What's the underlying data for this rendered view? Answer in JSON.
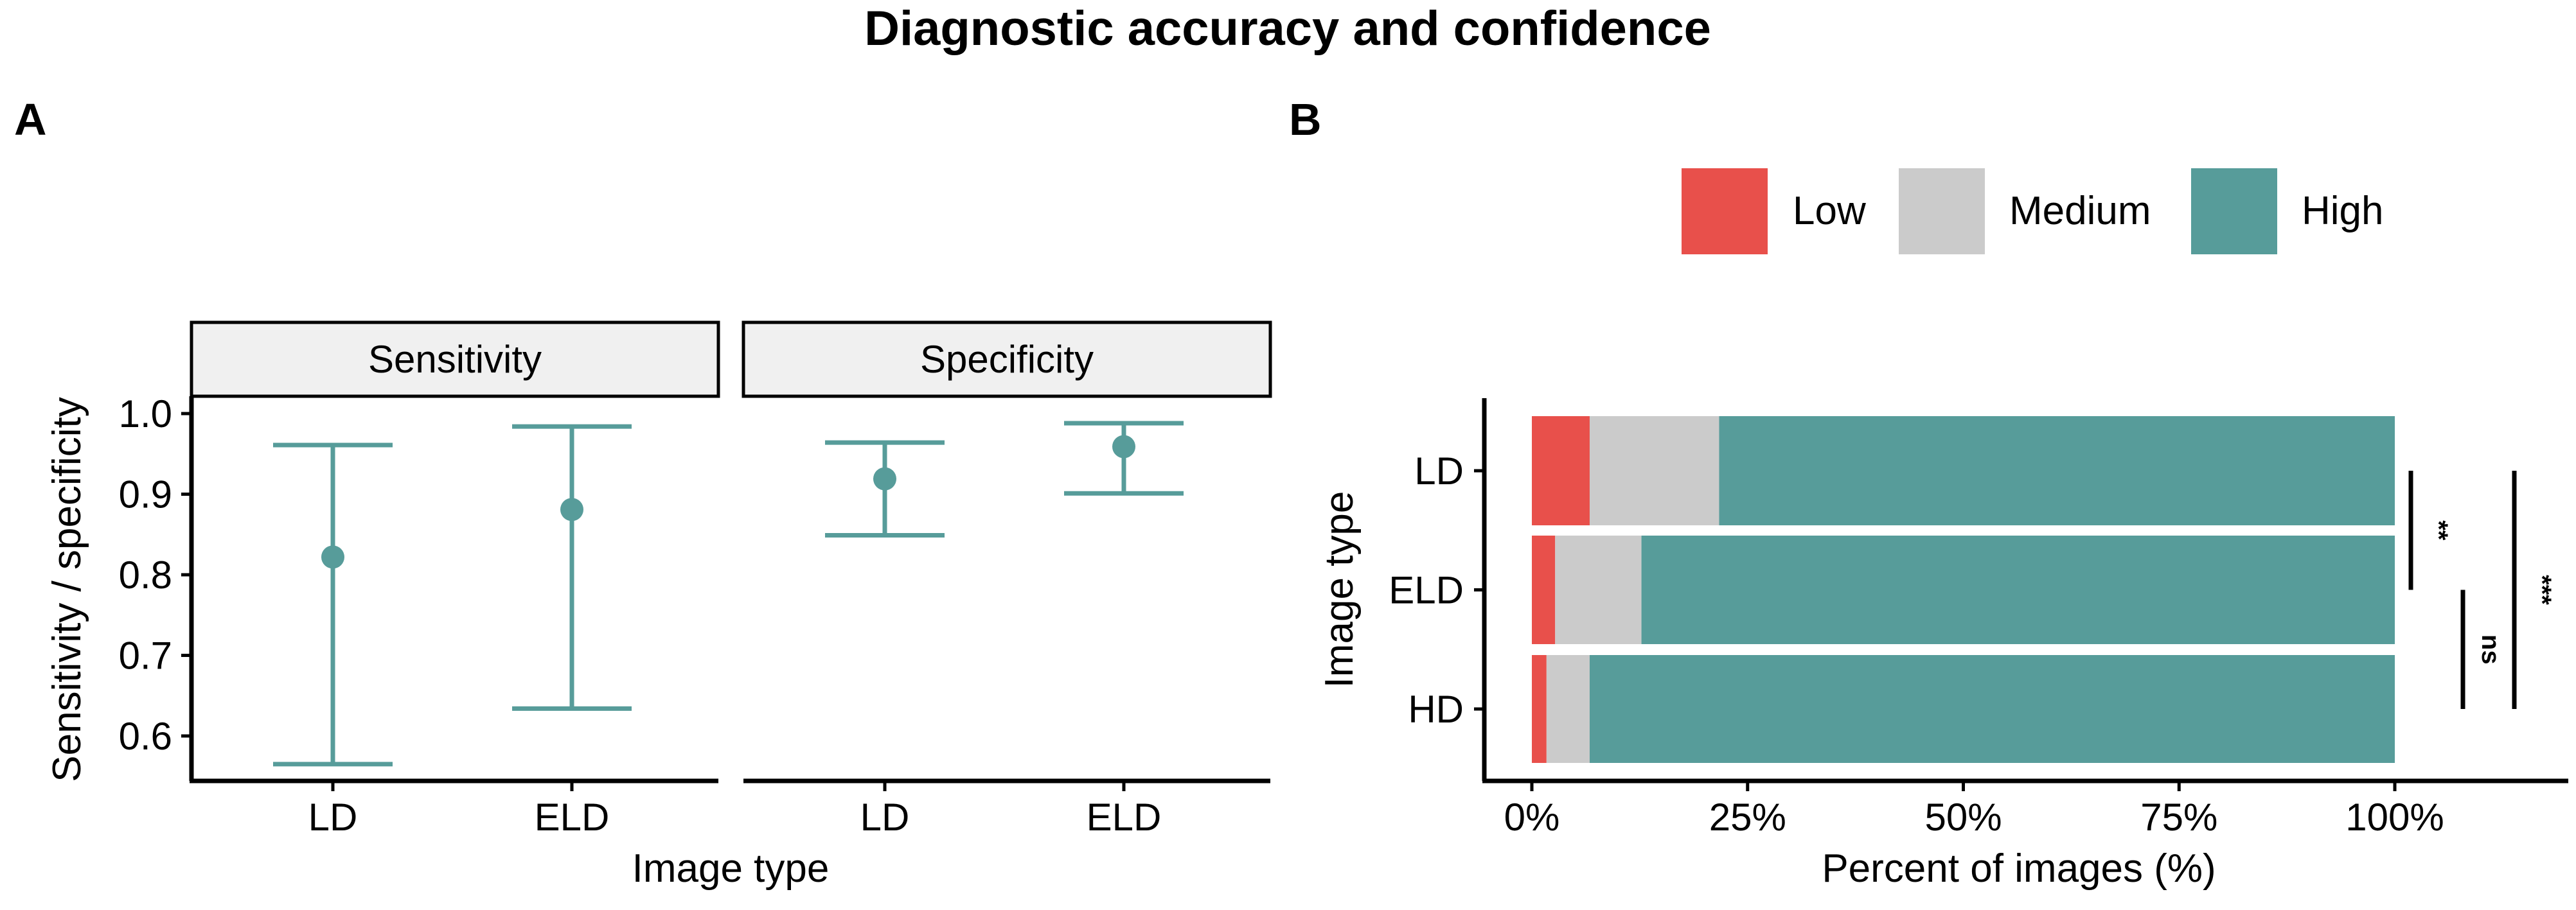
{
  "title": "Diagnostic accuracy and confidence",
  "colors": {
    "teal": "#579c9a",
    "low": "#e8504b",
    "medium": "#cbcbcb",
    "high": "#579c9a",
    "strip_bg": "#f0f0f0"
  },
  "chart_data": [
    {
      "panel": "A",
      "type": "scatter",
      "subtype": "point-with-errorbars",
      "title": "",
      "xlabel": "Image type",
      "ylabel": "Sensitivity / specificity",
      "ylim": [
        0.55,
        1.0
      ],
      "yticks": [
        "0.6",
        "0.7",
        "0.8",
        "0.9",
        "1.0"
      ],
      "ytick_values": [
        0.6,
        0.7,
        0.8,
        0.9,
        1.0
      ],
      "facets": [
        {
          "name": "Sensitivity",
          "categories": [
            "LD",
            "ELD"
          ],
          "values": [
            0.822,
            0.881
          ],
          "lower": [
            0.565,
            0.634
          ],
          "upper": [
            0.961,
            0.984
          ]
        },
        {
          "name": "Specificity",
          "categories": [
            "LD",
            "ELD"
          ],
          "values": [
            0.919,
            0.959
          ],
          "lower": [
            0.849,
            0.901
          ],
          "upper": [
            0.964,
            0.988
          ]
        }
      ]
    },
    {
      "panel": "B",
      "type": "bar",
      "subtype": "horizontal-stacked-percent",
      "title": "",
      "xlabel": "Percent of images (%)",
      "ylabel": "Image type",
      "xlim": [
        0,
        100
      ],
      "xticks": [
        "0%",
        "25%",
        "50%",
        "75%",
        "100%"
      ],
      "xtick_values": [
        0,
        25,
        50,
        75,
        100
      ],
      "categories": [
        "LD",
        "ELD",
        "HD"
      ],
      "legend_position": "top",
      "series": [
        {
          "name": "Low",
          "color": "#e8504b",
          "values": [
            6.7,
            2.7,
            1.7
          ]
        },
        {
          "name": "Medium",
          "color": "#cbcbcb",
          "values": [
            15.0,
            10.0,
            5.0
          ]
        },
        {
          "name": "High",
          "color": "#579c9a",
          "values": [
            78.3,
            87.3,
            93.3
          ]
        }
      ],
      "significance": [
        {
          "from": "LD",
          "to": "ELD",
          "label": "**"
        },
        {
          "from": "ELD",
          "to": "HD",
          "label": "ns"
        },
        {
          "from": "LD",
          "to": "HD",
          "label": "***"
        }
      ]
    }
  ]
}
